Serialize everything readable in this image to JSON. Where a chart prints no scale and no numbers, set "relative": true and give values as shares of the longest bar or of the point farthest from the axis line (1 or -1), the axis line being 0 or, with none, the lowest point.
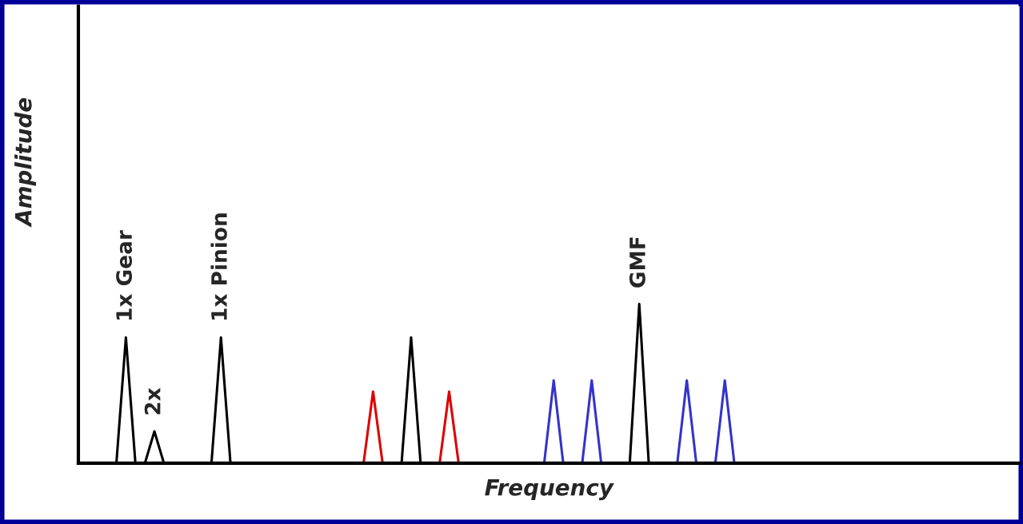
{
  "chart_data": {
    "type": "line",
    "relative": true,
    "annotations": [
      "1x Gear",
      "2x",
      "1x Pinion",
      "GMF"
    ],
    "xlabel": "Frequency",
    "ylabel": "Amplitude",
    "grid": false,
    "legend": false,
    "tick_labels": false,
    "marker": "none",
    "line_style": "solid",
    "categories": [
      null,
      null,
      null,
      null,
      null,
      null,
      null,
      null,
      null,
      null,
      null,
      null,
      null,
      null,
      null,
      null,
      null,
      null,
      null,
      null,
      null,
      null,
      null,
      null,
      null,
      null,
      null,
      null,
      null,
      null,
      null,
      null,
      null,
      null,
      null,
      null,
      null,
      null,
      null,
      null,
      null,
      null,
      null,
      null,
      null,
      null,
      null,
      null,
      null,
      null,
      null,
      null,
      null,
      null,
      null,
      null,
      null,
      null,
      null,
      null,
      null,
      null,
      null,
      null,
      null,
      null,
      null,
      null,
      null,
      null,
      null,
      null,
      null,
      null,
      null,
      null,
      null,
      null,
      null,
      null,
      null,
      null,
      null,
      null,
      null,
      null,
      null,
      null,
      null,
      null,
      null,
      null,
      null,
      null,
      null,
      null,
      null,
      null,
      null,
      null
    ],
    "series": [
      {
        "color": "#000000",
        "values": [
          0,
          0,
          0,
          0,
          0,
          0.79,
          0,
          0,
          0.2,
          0,
          0,
          0,
          0,
          0,
          0,
          0.79,
          0,
          0,
          0,
          0,
          0,
          0,
          0,
          0,
          0,
          0,
          0,
          0,
          0,
          0,
          0,
          0,
          0,
          0,
          0,
          0.79,
          0,
          0,
          0,
          0,
          0,
          0,
          0,
          0,
          0,
          0,
          0,
          0,
          0,
          0,
          0,
          0,
          0,
          0,
          0,
          0,
          0,
          0,
          0,
          1,
          0,
          0,
          0,
          0,
          0,
          0,
          0,
          0,
          0,
          0,
          0,
          0,
          0,
          0,
          0,
          0,
          0,
          0,
          0,
          0,
          0,
          0,
          0,
          0,
          0,
          0,
          0,
          0,
          0,
          0,
          0,
          0,
          0,
          0,
          0,
          0,
          0,
          0,
          0,
          0
        ]
      },
      {
        "color": "#dd0000",
        "values": [
          null,
          null,
          null,
          null,
          null,
          null,
          null,
          null,
          null,
          null,
          null,
          null,
          null,
          null,
          null,
          null,
          null,
          null,
          null,
          null,
          null,
          null,
          null,
          null,
          null,
          null,
          null,
          null,
          null,
          null,
          0,
          0.45,
          0,
          null,
          null,
          null,
          null,
          null,
          0,
          0.45,
          0,
          null,
          null,
          null,
          null,
          null,
          null,
          null,
          null,
          null,
          null,
          null,
          null,
          null,
          null,
          null,
          null,
          null,
          null,
          null,
          null,
          null,
          null,
          null,
          null,
          null,
          null,
          null,
          null,
          null,
          null,
          null,
          null,
          null,
          null,
          null,
          null,
          null,
          null,
          null,
          null,
          null,
          null,
          null,
          null,
          null,
          null,
          null,
          null,
          null,
          null,
          null,
          null,
          null,
          null,
          null,
          null,
          null,
          null,
          null
        ]
      },
      {
        "color": "#3333cc",
        "values": [
          null,
          null,
          null,
          null,
          null,
          null,
          null,
          null,
          null,
          null,
          null,
          null,
          null,
          null,
          null,
          null,
          null,
          null,
          null,
          null,
          null,
          null,
          null,
          null,
          null,
          null,
          null,
          null,
          null,
          null,
          null,
          null,
          null,
          null,
          null,
          null,
          null,
          null,
          null,
          null,
          null,
          null,
          null,
          null,
          null,
          null,
          null,
          null,
          null,
          0,
          0.52,
          0,
          null,
          0,
          0.52,
          0,
          null,
          null,
          null,
          null,
          null,
          null,
          null,
          0,
          0.52,
          0,
          null,
          0,
          0.52,
          0,
          null,
          null,
          null,
          null,
          null,
          null,
          null,
          null,
          null,
          null,
          null,
          null,
          null,
          null,
          null,
          null,
          null,
          null,
          null,
          null,
          null,
          null,
          null,
          null,
          null,
          null,
          null,
          null,
          null,
          null
        ]
      }
    ]
  }
}
